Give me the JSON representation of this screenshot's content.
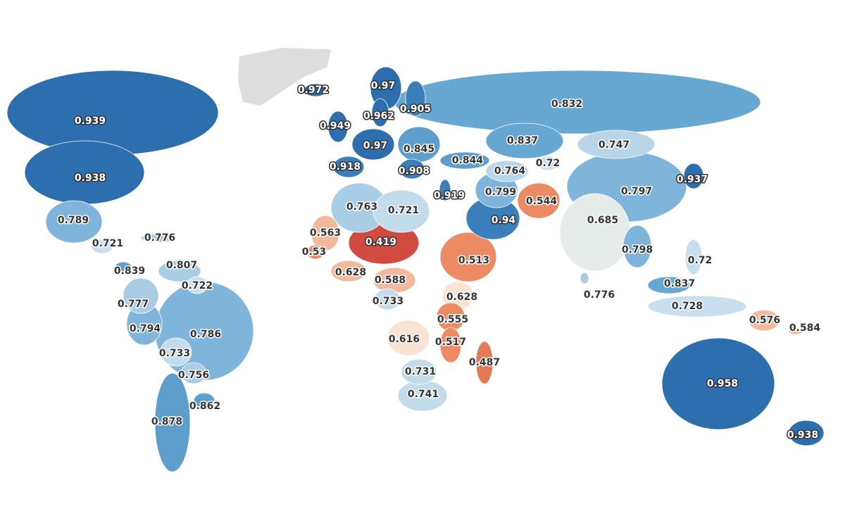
{
  "chart_data": {
    "type": "choropleth",
    "values": [
      0.972,
      0.97,
      0.905,
      0.962,
      0.949,
      0.97,
      0.845,
      0.918,
      0.908,
      0.844,
      0.837,
      0.747,
      0.832,
      0.764,
      0.72,
      0.797,
      0.937,
      0.799,
      0.544,
      0.919,
      0.763,
      0.721,
      0.94,
      0.685,
      0.563,
      0.419,
      0.53,
      0.513,
      0.798,
      0.72,
      0.628,
      0.588,
      0.776,
      0.837,
      0.733,
      0.628,
      0.728,
      0.555,
      0.576,
      0.584,
      0.616,
      0.517,
      0.487,
      0.731,
      0.741,
      0.958,
      0.938,
      0.939,
      0.938,
      0.789,
      0.776,
      0.721,
      0.839,
      0.807,
      0.722,
      0.777,
      0.794,
      0.786,
      0.733,
      0.756,
      0.862,
      0.878
    ],
    "colors": [
      "#2d6fae",
      "#2d6fae",
      "#3a7fbb",
      "#2d6fae",
      "#2d6fae",
      "#2d6fae",
      "#5e9ecd",
      "#3a7fbb",
      "#3a7fbb",
      "#5e9ecd",
      "#67a8d2",
      "#b8d5ea",
      "#67a8d2",
      "#b8d5ea",
      "#c8dfef",
      "#7fb5da",
      "#2d6fae",
      "#7fb5da",
      "#eb8a63",
      "#3a7fbb",
      "#a9cde4",
      "#c3dcec",
      "#3a7fbb",
      "#e6ecea",
      "#f4b99c",
      "#d24b40",
      "#eb8a63",
      "#eb8a63",
      "#7fb5da",
      "#c8dfef",
      "#f4b99c",
      "#f4b99c",
      "#a9cde4",
      "#67a8d2",
      "#c3dcec",
      "#fbe3d4",
      "#c8dfef",
      "#eb8a63",
      "#f4b99c",
      "#f4b99c",
      "#fbe3d4",
      "#eb8a63",
      "#e07b55",
      "#c3dcec",
      "#c3dcec",
      "#2d6fae",
      "#2d6fae",
      "#2d6fae",
      "#2d6fae",
      "#7fb5da",
      "#a9cde4",
      "#c8dfef",
      "#5e9ecd",
      "#a9cde4",
      "#c8dfef",
      "#a9cde4",
      "#7fb5da",
      "#7fb5da",
      "#c3dcec",
      "#a9cde4",
      "#5e9ecd",
      "#5e9ecd"
    ]
  }
}
